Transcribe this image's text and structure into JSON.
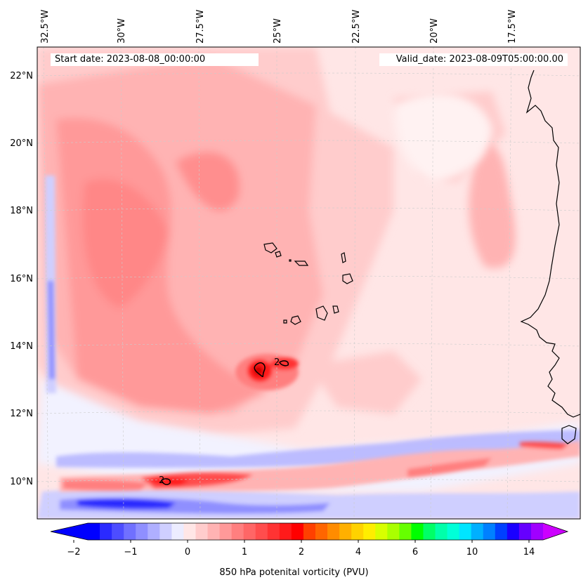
{
  "map": {
    "start_label": "Start date: 2023-08-08_00:00:00",
    "valid_label": "Valid_date: 2023-08-09T05:00:00.00",
    "lon_labels": [
      "32.5°W",
      "30°W",
      "27.5°W",
      "25°W",
      "22.5°W",
      "20°W",
      "17.5°W"
    ],
    "lat_labels": [
      "22°N",
      "20°N",
      "18°N",
      "16°N",
      "14°N",
      "12°N",
      "10°N"
    ],
    "contour_labels": [
      "2",
      "2"
    ],
    "colorbar": {
      "label": "850 hPa potenital vorticity (PVU)",
      "tick_labels": [
        "−2",
        "−1",
        "0",
        "1",
        "2",
        "4",
        "6",
        "10",
        "14"
      ],
      "colors": [
        "#0000ff",
        "#2a2aff",
        "#4d4dff",
        "#7070ff",
        "#8f8fff",
        "#afafff",
        "#cfcfff",
        "#ececff",
        "#ffe6e6",
        "#ffcccc",
        "#ffb3b3",
        "#ff9999",
        "#ff7f7f",
        "#ff6666",
        "#ff4d4d",
        "#ff3333",
        "#ff1a1a",
        "#ff0000",
        "#ff4000",
        "#ff6600",
        "#ff8c00",
        "#ffb000",
        "#ffd200",
        "#ffee00",
        "#d8ff00",
        "#aaff00",
        "#66ff00",
        "#00ff00",
        "#00ff66",
        "#00ffaa",
        "#00ffd8",
        "#00e5ff",
        "#00b0ff",
        "#0080ff",
        "#0040ff",
        "#1a00ff",
        "#6600ff",
        "#a000ff"
      ],
      "left_color": "#0000ff",
      "right_color": "#cc00ff"
    }
  }
}
